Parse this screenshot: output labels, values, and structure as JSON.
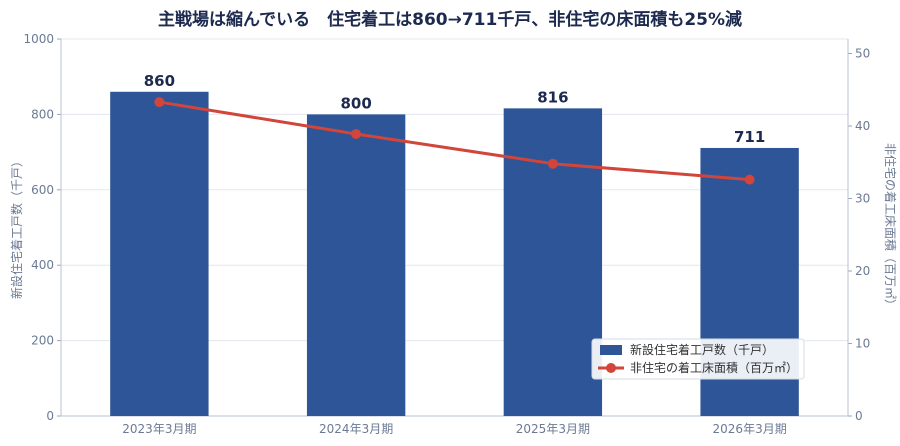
{
  "chart_data": {
    "type": "bar",
    "title": "主戦場は縮んでいる　住宅着工は860→711千戸、非住宅の床面積も25%減",
    "categories": [
      "2023年3月期",
      "2024年3月期",
      "2025年3月期",
      "2026年3月期"
    ],
    "series": [
      {
        "name": "新設住宅着工戸数（千戸）",
        "type": "bar",
        "axis": "left",
        "values": [
          860,
          800,
          816,
          711
        ],
        "color": "#2e5597"
      },
      {
        "name": "非住宅の着工床面積（百万㎡）",
        "type": "line",
        "axis": "right",
        "values": [
          43.3,
          38.9,
          34.8,
          32.6
        ],
        "color": "#d1453b"
      }
    ],
    "bar_labels": [
      "860",
      "800",
      "816",
      "711"
    ],
    "ylabel": "新設住宅着工戸数（千戸）",
    "y2label": "非住宅の着工床面積（百万㎡）",
    "ylim": [
      0,
      1000
    ],
    "y2lim": [
      0,
      52
    ],
    "yticks": [
      0,
      200,
      400,
      600,
      800,
      1000
    ],
    "y2ticks": [
      0,
      10,
      20,
      30,
      40,
      50
    ],
    "grid": true,
    "legend_position": "bottom-right"
  }
}
